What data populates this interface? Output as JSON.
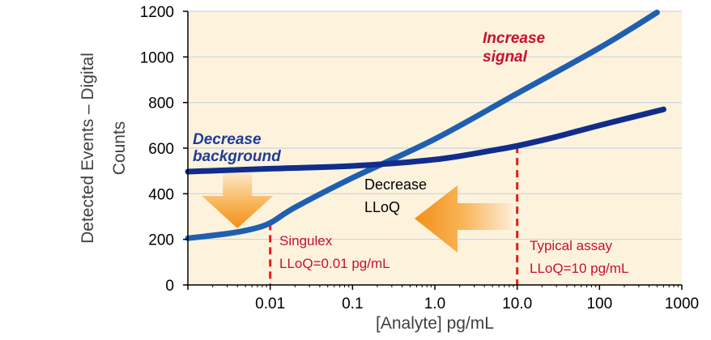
{
  "chart_data": {
    "type": "line",
    "xlabel": "[Analyte] pg/mL",
    "ylabel_lines": [
      "Detected Events – Digital",
      "Counts"
    ],
    "x_scale": "log",
    "xlim": [
      0.001,
      1000
    ],
    "ylim": [
      0,
      1200
    ],
    "x_ticks": [
      {
        "value": 0.01,
        "label": "0.01"
      },
      {
        "value": 0.1,
        "label": "0.1"
      },
      {
        "value": 1,
        "label": "1.0"
      },
      {
        "value": 10,
        "label": "10.0"
      },
      {
        "value": 100,
        "label": "100"
      },
      {
        "value": 1000,
        "label": "1000"
      }
    ],
    "y_ticks": [
      {
        "value": 0,
        "label": "0"
      },
      {
        "value": 200,
        "label": "200"
      },
      {
        "value": 400,
        "label": "400"
      },
      {
        "value": 600,
        "label": "600"
      },
      {
        "value": 800,
        "label": "800"
      },
      {
        "value": 1000,
        "label": "1000"
      },
      {
        "value": 1200,
        "label": "1200"
      }
    ],
    "grid": "horizontal",
    "plot_background": "#fdf3dc",
    "series": [
      {
        "color": "#1f5fb0",
        "points": [
          {
            "x": 0.001,
            "y": 205
          },
          {
            "x": 0.003,
            "y": 225
          },
          {
            "x": 0.006,
            "y": 245
          },
          {
            "x": 0.01,
            "y": 272
          },
          {
            "x": 0.02,
            "y": 340
          },
          {
            "x": 0.1,
            "y": 470
          },
          {
            "x": 1,
            "y": 640
          },
          {
            "x": 10,
            "y": 840
          },
          {
            "x": 100,
            "y": 1040
          },
          {
            "x": 500,
            "y": 1195
          }
        ]
      },
      {
        "color": "#102d8c",
        "points": [
          {
            "x": 0.001,
            "y": 497
          },
          {
            "x": 0.01,
            "y": 510
          },
          {
            "x": 0.1,
            "y": 522
          },
          {
            "x": 1,
            "y": 550
          },
          {
            "x": 5,
            "y": 590
          },
          {
            "x": 10,
            "y": 610
          },
          {
            "x": 30,
            "y": 650
          },
          {
            "x": 100,
            "y": 700
          },
          {
            "x": 600,
            "y": 770
          }
        ]
      }
    ],
    "vlines": [
      {
        "x": 0.01,
        "y_top": 272,
        "color": "#e31c1c"
      },
      {
        "x": 10,
        "y_top": 610,
        "color": "#e31c1c"
      }
    ],
    "annotations": {
      "increase_signal": [
        "Increase",
        "signal"
      ],
      "decrease_background": [
        "Decrease",
        "background"
      ],
      "decrease_lloq": [
        "Decrease",
        "LLoQ"
      ],
      "singulex": [
        "Singulex",
        "LLoQ=0.01 pg/mL"
      ],
      "typical_assay": [
        "Typical assay",
        "LLoQ=10 pg/mL"
      ]
    },
    "arrows": [
      {
        "direction": "down",
        "at_x": 0.004
      },
      {
        "direction": "left",
        "at_x": 1
      }
    ]
  }
}
